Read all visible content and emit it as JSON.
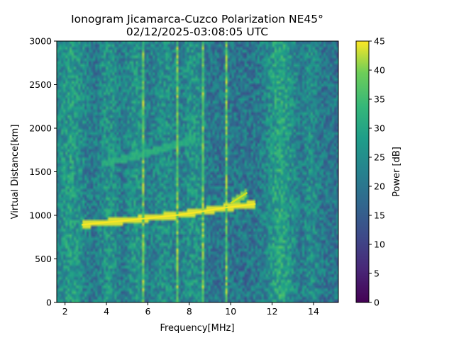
{
  "chart_data": {
    "type": "heatmap",
    "title_line1": "Ionogram Jicamarca-Cuzco Polarization NE45°",
    "title_line2": "02/12/2025-03:08:05 UTC",
    "xlabel": "Frequency[MHz]",
    "ylabel": "Virtual Distance[km]",
    "xlim": [
      1.6,
      15.2
    ],
    "ylim": [
      0,
      3000
    ],
    "xticks": [
      2,
      4,
      6,
      8,
      10,
      12,
      14
    ],
    "yticks": [
      0,
      500,
      1000,
      1500,
      2000,
      2500,
      3000
    ],
    "colorbar": {
      "label": "Power [dB]",
      "range": [
        0,
        45
      ],
      "ticks": [
        0,
        5,
        10,
        15,
        20,
        25,
        30,
        35,
        40,
        45
      ],
      "colormap": "viridis"
    },
    "bright_bands_mhz": [
      {
        "center": 2.3,
        "width": 0.7,
        "level": 0.62
      },
      {
        "center": 4.1,
        "width": 0.5,
        "level": 0.58
      },
      {
        "center": 5.4,
        "width": 0.5,
        "level": 0.58
      },
      {
        "center": 6.8,
        "width": 0.7,
        "level": 0.56
      },
      {
        "center": 8.2,
        "width": 0.6,
        "level": 0.58
      },
      {
        "center": 12.4,
        "width": 0.7,
        "level": 0.66
      },
      {
        "center": 13.9,
        "width": 0.4,
        "level": 0.55
      }
    ],
    "interference_lines_mhz": [
      5.8,
      7.4,
      8.7,
      9.75
    ],
    "echo_trace": [
      {
        "f": 2.8,
        "d": 890
      },
      {
        "f": 3.5,
        "d": 910
      },
      {
        "f": 4.5,
        "d": 930
      },
      {
        "f": 5.5,
        "d": 955
      },
      {
        "f": 6.5,
        "d": 980
      },
      {
        "f": 7.5,
        "d": 1005
      },
      {
        "f": 8.5,
        "d": 1040
      },
      {
        "f": 9.5,
        "d": 1080
      },
      {
        "f": 10.5,
        "d": 1110
      },
      {
        "f": 11.2,
        "d": 1130
      }
    ],
    "echo_spur": [
      {
        "f": 10.0,
        "d": 1140
      },
      {
        "f": 10.4,
        "d": 1200
      },
      {
        "f": 10.8,
        "d": 1260
      }
    ],
    "faint_trace": [
      {
        "f": 3.8,
        "d": 1590
      },
      {
        "f": 5.5,
        "d": 1680
      },
      {
        "f": 7.0,
        "d": 1790
      },
      {
        "f": 8.3,
        "d": 1880
      }
    ]
  }
}
